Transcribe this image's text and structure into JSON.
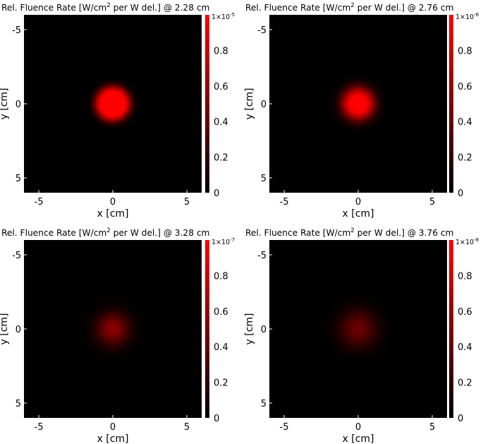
{
  "chart_data": [
    {
      "type": "heatmap",
      "title_prefix": "Rel. Fluence Rate [W/cm",
      "title_sup": "2",
      "title_suffix": " per W del.] @ 2.28 cm",
      "depth_cm": 2.28,
      "xlabel": "x [cm]",
      "ylabel": "y [cm]",
      "xlim": [
        -6,
        6
      ],
      "ylim": [
        -6,
        6
      ],
      "y_axis_inverted": true,
      "x_ticks": [
        -5,
        0,
        5
      ],
      "y_ticks": [
        -5,
        0,
        5
      ],
      "colorbar": {
        "min": 0,
        "max": 1,
        "ticks": [
          "0",
          "0.2",
          "0.4",
          "0.6",
          "0.8"
        ],
        "multiplier_base": "1×10",
        "multiplier_exp": "-5",
        "colormap": [
          "#000000",
          "#ff0000"
        ]
      },
      "spot": {
        "center": [
          0,
          0
        ],
        "plateau_radius_cm": 0.75,
        "falloff_sigma_cm": 0.35,
        "peak_level": 1.0
      }
    },
    {
      "type": "heatmap",
      "title_prefix": "Rel. Fluence Rate [W/cm",
      "title_sup": "2",
      "title_suffix": " per W del.] @ 2.76 cm",
      "depth_cm": 2.76,
      "xlabel": "x [cm]",
      "ylabel": "y [cm]",
      "xlim": [
        -6,
        6
      ],
      "ylim": [
        -6,
        6
      ],
      "y_axis_inverted": true,
      "x_ticks": [
        -5,
        0,
        5
      ],
      "y_ticks": [
        -5,
        0,
        5
      ],
      "colorbar": {
        "min": 0,
        "max": 1,
        "ticks": [
          "0",
          "0.2",
          "0.4",
          "0.6",
          "0.8"
        ],
        "multiplier_base": "1×10",
        "multiplier_exp": "-6",
        "colormap": [
          "#000000",
          "#ff0000"
        ]
      },
      "spot": {
        "center": [
          0,
          0
        ],
        "plateau_radius_cm": 0.45,
        "falloff_sigma_cm": 0.5,
        "peak_level": 1.0
      }
    },
    {
      "type": "heatmap",
      "title_prefix": "Rel. Fluence Rate [W/cm",
      "title_sup": "2",
      "title_suffix": " per W del.] @ 3.28 cm",
      "depth_cm": 3.28,
      "xlabel": "x [cm]",
      "ylabel": "y [cm]",
      "xlim": [
        -6,
        6
      ],
      "ylim": [
        -6,
        6
      ],
      "y_axis_inverted": true,
      "x_ticks": [
        -5,
        0,
        5
      ],
      "y_ticks": [
        -5,
        0,
        5
      ],
      "colorbar": {
        "min": 0,
        "max": 1,
        "ticks": [
          "0",
          "0.2",
          "0.4",
          "0.6",
          "0.8"
        ],
        "multiplier_base": "1×10",
        "multiplier_exp": "-7",
        "colormap": [
          "#000000",
          "#ff0000"
        ]
      },
      "spot": {
        "center": [
          0,
          0
        ],
        "plateau_radius_cm": 0.0,
        "falloff_sigma_cm": 0.75,
        "peak_level": 0.55
      }
    },
    {
      "type": "heatmap",
      "title_prefix": "Rel. Fluence Rate [W/cm",
      "title_sup": "2",
      "title_suffix": " per W del.] @ 3.76 cm",
      "depth_cm": 3.76,
      "xlabel": "x [cm]",
      "ylabel": "y [cm]",
      "xlim": [
        -6,
        6
      ],
      "ylim": [
        -6,
        6
      ],
      "y_axis_inverted": true,
      "x_ticks": [
        -5,
        0,
        5
      ],
      "y_ticks": [
        -5,
        0,
        5
      ],
      "colorbar": {
        "min": 0,
        "max": 1,
        "ticks": [
          "0",
          "0.2",
          "0.4",
          "0.6",
          "0.8"
        ],
        "multiplier_base": "1×10",
        "multiplier_exp": "-8",
        "colormap": [
          "#000000",
          "#ff0000"
        ]
      },
      "spot": {
        "center": [
          0,
          0
        ],
        "plateau_radius_cm": 0.0,
        "falloff_sigma_cm": 0.85,
        "peak_level": 0.42
      }
    }
  ]
}
